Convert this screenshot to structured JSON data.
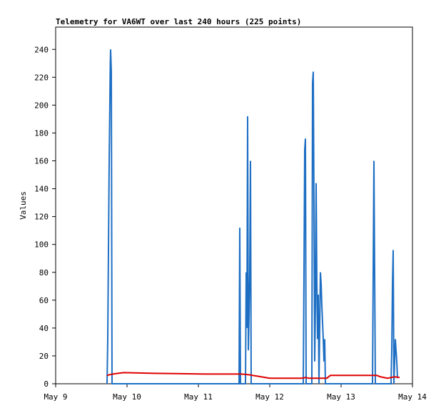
{
  "chart_data": {
    "type": "line",
    "title": "Telemetry for VA6WT over last 240 hours (225 points)",
    "y_label": "Values",
    "xlim": [
      9,
      14
    ],
    "xticks": [
      {
        "value": 9,
        "label": "May 9"
      },
      {
        "value": 10,
        "label": "May 10"
      },
      {
        "value": 11,
        "label": "May 11"
      },
      {
        "value": 12,
        "label": "May 12"
      },
      {
        "value": 13,
        "label": "May 13"
      },
      {
        "value": 14,
        "label": "May 14"
      }
    ],
    "ylim": [
      0,
      256
    ],
    "yticks": [
      0,
      20,
      40,
      60,
      80,
      100,
      120,
      140,
      160,
      180,
      200,
      220,
      240
    ],
    "grid": false,
    "series": [
      {
        "color": "#1e6fc4",
        "x": [
          9.72,
          9.73,
          9.74,
          9.75,
          9.76,
          9.765,
          9.77,
          9.78,
          9.79,
          11.57,
          11.58,
          11.59,
          11.66,
          11.67,
          11.68,
          11.69,
          11.7,
          11.71,
          11.72,
          11.73,
          11.74,
          12.47,
          12.48,
          12.49,
          12.5,
          12.51,
          12.59,
          12.6,
          12.61,
          12.62,
          12.63,
          12.64,
          12.65,
          12.66,
          12.67,
          12.68,
          12.69,
          12.71,
          12.72,
          12.73,
          12.74,
          12.75,
          12.76,
          12.77,
          12.78,
          13.44,
          13.45,
          13.46,
          13.47,
          13.48,
          13.7,
          13.71,
          13.72,
          13.73,
          13.74,
          13.76,
          13.77,
          13.78,
          13.79
        ],
        "values": [
          0,
          32,
          96,
          160,
          204,
          228,
          240,
          224,
          0,
          0,
          112,
          0,
          0,
          80,
          40,
          192,
          24,
          48,
          80,
          160,
          0,
          0,
          80,
          168,
          176,
          0,
          0,
          216,
          224,
          128,
          16,
          56,
          144,
          72,
          32,
          64,
          0,
          80,
          72,
          56,
          44,
          32,
          16,
          32,
          0,
          0,
          80,
          160,
          80,
          0,
          0,
          24,
          72,
          96,
          0,
          32,
          24,
          16,
          4
        ]
      },
      {
        "color": "#e00000",
        "x": [
          9.72,
          9.8,
          9.95,
          10.38,
          11.1,
          11.6,
          11.7,
          12.0,
          12.45,
          12.5,
          12.55,
          12.8,
          12.85,
          13.5,
          13.55,
          13.65,
          13.75,
          13.82
        ],
        "values": [
          6,
          7,
          8,
          7.5,
          7,
          7,
          6.5,
          4,
          4,
          4.5,
          4,
          4,
          6,
          6,
          5,
          4,
          5,
          4.5
        ]
      }
    ]
  }
}
